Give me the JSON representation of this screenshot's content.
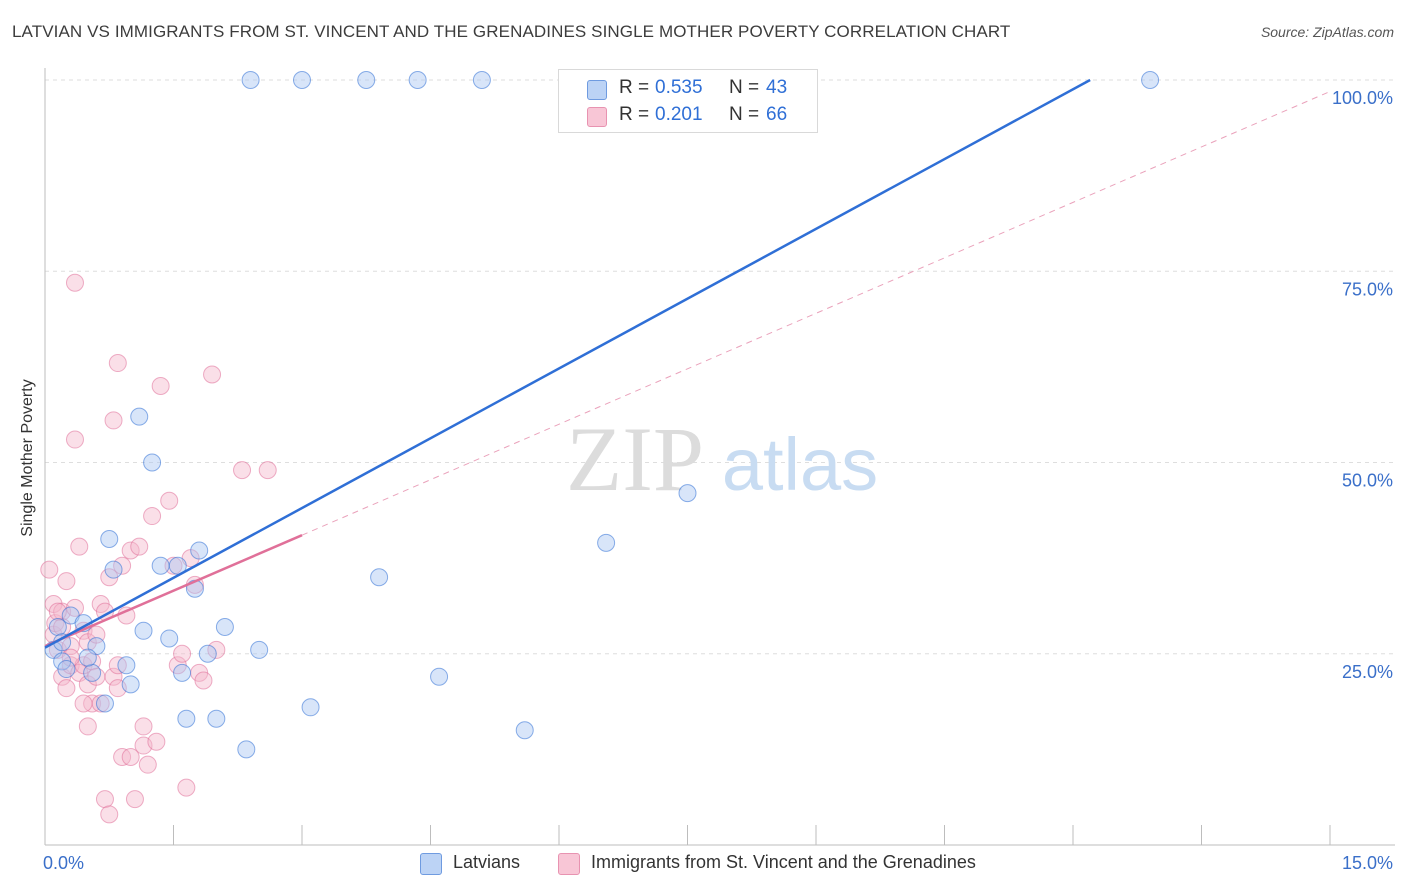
{
  "title": "LATVIAN VS IMMIGRANTS FROM ST. VINCENT AND THE GRENADINES SINGLE MOTHER POVERTY CORRELATION CHART",
  "source": "Source: ZipAtlas.com",
  "watermark": {
    "zip": "ZIP",
    "atlas": "atlas"
  },
  "colors": {
    "latvians": "#2f6fd6",
    "latvians_fill": "#a9c6f2",
    "svg": "#e07099",
    "svg_fill": "#f5b8cb",
    "tick_label": "#3a6fc9"
  },
  "legend_top": {
    "rows": [
      {
        "r_label": "R =",
        "r_value": "0.535",
        "n_label": "N =",
        "n_value": "43"
      },
      {
        "r_label": "R =",
        "r_value": "0.201",
        "n_label": "N =",
        "n_value": "66"
      }
    ]
  },
  "legend_bottom": {
    "items": [
      "Latvians",
      "Immigrants from St. Vincent and the Grenadines"
    ]
  },
  "chart_data": {
    "type": "scatter",
    "xlabel": "",
    "ylabel": "Single Mother Poverty",
    "xlim": [
      0,
      15
    ],
    "ylim": [
      0,
      100
    ],
    "x_tick_labels": [
      "0.0%",
      "15.0%"
    ],
    "y_tick_labels": [
      "25.0%",
      "50.0%",
      "75.0%",
      "100.0%"
    ],
    "y_ticks": [
      25,
      50,
      75,
      100
    ],
    "grid": "horizontal dashed",
    "legend_position": "top-center",
    "series": [
      {
        "name": "Latvians",
        "r": 0.535,
        "n": 43,
        "trend": {
          "x": [
            0,
            12.2
          ],
          "y": [
            25.8,
            100
          ]
        },
        "points": [
          [
            0.1,
            25.5
          ],
          [
            0.15,
            28.5
          ],
          [
            0.2,
            24.0
          ],
          [
            0.25,
            23.0
          ],
          [
            0.3,
            30.0
          ],
          [
            0.45,
            29.0
          ],
          [
            0.55,
            22.5
          ],
          [
            0.6,
            26.0
          ],
          [
            0.7,
            18.5
          ],
          [
            0.75,
            40.0
          ],
          [
            0.8,
            36.0
          ],
          [
            0.95,
            23.5
          ],
          [
            1.0,
            21.0
          ],
          [
            1.1,
            56.0
          ],
          [
            1.15,
            28.0
          ],
          [
            1.25,
            50.0
          ],
          [
            1.35,
            36.5
          ],
          [
            1.45,
            27.0
          ],
          [
            1.55,
            36.5
          ],
          [
            1.6,
            22.5
          ],
          [
            1.65,
            16.5
          ],
          [
            1.75,
            33.5
          ],
          [
            1.8,
            38.5
          ],
          [
            1.9,
            25.0
          ],
          [
            2.0,
            16.5
          ],
          [
            2.1,
            28.5
          ],
          [
            2.35,
            12.5
          ],
          [
            2.5,
            25.5
          ],
          [
            3.1,
            18.0
          ],
          [
            3.9,
            35.0
          ],
          [
            4.6,
            22.0
          ],
          [
            5.6,
            15.0
          ],
          [
            6.55,
            39.5
          ],
          [
            7.5,
            46.0
          ],
          [
            2.4,
            100
          ],
          [
            3.0,
            100
          ],
          [
            3.75,
            100
          ],
          [
            4.35,
            100
          ],
          [
            5.1,
            100
          ],
          [
            6.1,
            100
          ],
          [
            12.9,
            100
          ],
          [
            0.2,
            26.5
          ],
          [
            0.5,
            24.5
          ]
        ]
      },
      {
        "name": "Immigrants from St. Vincent and the Grenadines",
        "r": 0.201,
        "n": 66,
        "trend": {
          "x": [
            0,
            3.0
          ],
          "y": [
            26.0,
            40.5
          ]
        },
        "dash": {
          "x": [
            3.0,
            15
          ],
          "y": [
            40.5,
            98.5
          ]
        },
        "points": [
          [
            0.05,
            36.0
          ],
          [
            0.1,
            31.5
          ],
          [
            0.1,
            27.5
          ],
          [
            0.12,
            29.0
          ],
          [
            0.15,
            25.5
          ],
          [
            0.2,
            22.0
          ],
          [
            0.2,
            30.5
          ],
          [
            0.25,
            34.5
          ],
          [
            0.25,
            20.5
          ],
          [
            0.3,
            26.0
          ],
          [
            0.3,
            23.5
          ],
          [
            0.35,
            31.0
          ],
          [
            0.4,
            22.5
          ],
          [
            0.4,
            39.0
          ],
          [
            0.45,
            28.0
          ],
          [
            0.45,
            23.5
          ],
          [
            0.5,
            26.5
          ],
          [
            0.5,
            21.0
          ],
          [
            0.5,
            15.5
          ],
          [
            0.55,
            18.5
          ],
          [
            0.55,
            24.0
          ],
          [
            0.6,
            27.5
          ],
          [
            0.6,
            22.0
          ],
          [
            0.65,
            31.5
          ],
          [
            0.65,
            18.5
          ],
          [
            0.7,
            30.5
          ],
          [
            0.7,
            6.0
          ],
          [
            0.75,
            4.0
          ],
          [
            0.75,
            35.0
          ],
          [
            0.8,
            55.5
          ],
          [
            0.8,
            22.0
          ],
          [
            0.85,
            23.5
          ],
          [
            0.85,
            20.5
          ],
          [
            0.85,
            63.0
          ],
          [
            0.9,
            11.5
          ],
          [
            0.95,
            30.0
          ],
          [
            1.0,
            38.5
          ],
          [
            1.05,
            6.0
          ],
          [
            1.1,
            39.0
          ],
          [
            1.15,
            13.0
          ],
          [
            1.15,
            15.5
          ],
          [
            1.2,
            10.5
          ],
          [
            1.25,
            43.0
          ],
          [
            1.3,
            13.5
          ],
          [
            1.35,
            60.0
          ],
          [
            1.45,
            45.0
          ],
          [
            1.5,
            36.5
          ],
          [
            1.55,
            23.5
          ],
          [
            1.6,
            25.0
          ],
          [
            1.65,
            7.5
          ],
          [
            1.7,
            37.5
          ],
          [
            1.75,
            34.0
          ],
          [
            1.8,
            22.5
          ],
          [
            1.85,
            21.5
          ],
          [
            1.95,
            61.5
          ],
          [
            2.0,
            25.5
          ],
          [
            2.3,
            49.0
          ],
          [
            2.6,
            49.0
          ],
          [
            0.35,
            53.0
          ],
          [
            0.35,
            73.5
          ],
          [
            0.2,
            28.5
          ],
          [
            0.3,
            24.5
          ],
          [
            0.45,
            18.5
          ],
          [
            1.0,
            11.5
          ],
          [
            0.15,
            30.5
          ],
          [
            0.9,
            36.5
          ]
        ]
      }
    ]
  }
}
